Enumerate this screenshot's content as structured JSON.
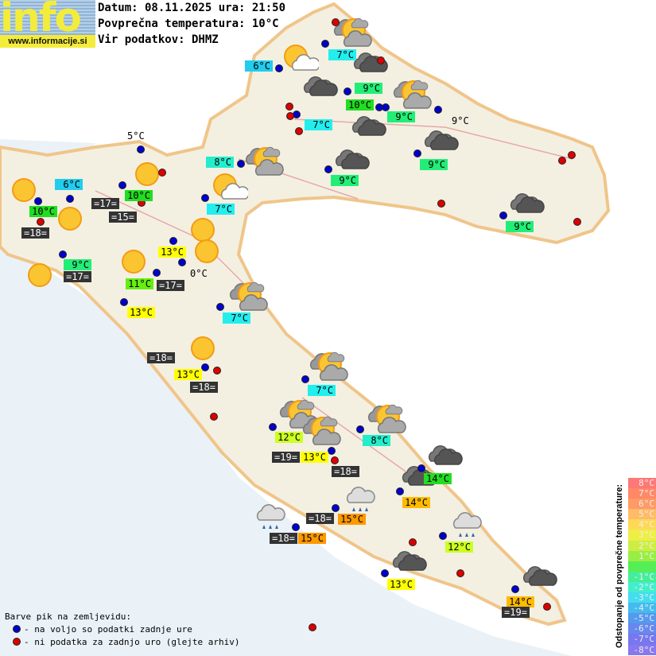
{
  "header": {
    "logo_text": "info",
    "site": "www.informacije.si",
    "date_line": "Datum: 08.11.2025 ura: 21:50",
    "avg_line": "Povprečna temperatura: 10°C",
    "source_line": "Vir podatkov: DHMZ"
  },
  "legend": {
    "title": "Barve pik na zemljevidu:",
    "blue": "- na voljo so podatki zadnje ure",
    "red": "- ni podatka za zadnjo uro (glejte arhiv)",
    "blue_color": "#0000cc",
    "red_color": "#dd0000"
  },
  "scale": {
    "title": "Odstopanje od povprečne temperature:",
    "rows": [
      {
        "label": "8°C",
        "color": "#ff7777"
      },
      {
        "label": "7°C",
        "color": "#ff8866"
      },
      {
        "label": "6°C",
        "color": "#ff9966"
      },
      {
        "label": "5°C",
        "color": "#ffbb66"
      },
      {
        "label": "4°C",
        "color": "#ffd955"
      },
      {
        "label": "3°C",
        "color": "#eeee44"
      },
      {
        "label": "2°C",
        "color": "#ccee44"
      },
      {
        "label": "1°C",
        "color": "#99ee44"
      },
      {
        "label": "",
        "color": "#55ee55"
      },
      {
        "label": "-1°C",
        "color": "#44ee99"
      },
      {
        "label": "-2°C",
        "color": "#44eecc"
      },
      {
        "label": "-3°C",
        "color": "#44ddee"
      },
      {
        "label": "-4°C",
        "color": "#44bbee"
      },
      {
        "label": "-5°C",
        "color": "#5599ee"
      },
      {
        "label": "-6°C",
        "color": "#6688ee"
      },
      {
        "label": "-7°C",
        "color": "#7777ee"
      },
      {
        "label": "-8°C",
        "color": "#8877ee"
      }
    ]
  },
  "temperatures": [
    {
      "text": "7°C",
      "color": "#22eeee"
    },
    {
      "text": "6°C",
      "color": "#22ccee"
    },
    {
      "text": "9°C",
      "color": "#22ee77"
    },
    {
      "text": "10°C",
      "color": "#22dd22"
    },
    {
      "text": "9°C",
      "color": "#22ee77"
    },
    {
      "text": "7°C",
      "color": "#22eeee"
    },
    {
      "text": "9°C",
      "color": ""
    },
    {
      "text": "8°C",
      "color": "#22eecc"
    },
    {
      "text": "9°C",
      "color": "#22ee77"
    },
    {
      "text": "9°C",
      "color": "#22ee77"
    },
    {
      "text": "5°C",
      "color": ""
    },
    {
      "text": "6°C",
      "color": "#22ccee"
    },
    {
      "text": "10°C",
      "color": "#22dd22"
    },
    {
      "text": "10°C",
      "color": "#22dd22"
    },
    {
      "text": "7°C",
      "color": "#22eeee"
    },
    {
      "text": "13°C",
      "color": "#ffff00"
    },
    {
      "text": "9°C",
      "color": "#22ee77"
    },
    {
      "text": "0°C",
      "color": ""
    },
    {
      "text": "11°C",
      "color": "#66ee11"
    },
    {
      "text": "13°C",
      "color": "#ffff00"
    },
    {
      "text": "7°C",
      "color": "#22eeee"
    },
    {
      "text": "13°C",
      "color": "#ffff00"
    },
    {
      "text": "7°C",
      "color": "#22eeee"
    },
    {
      "text": "12°C",
      "color": "#ccff22"
    },
    {
      "text": "8°C",
      "color": "#22eecc"
    },
    {
      "text": "13°C",
      "color": "#ffff00"
    },
    {
      "text": "14°C",
      "color": "#22dd22"
    },
    {
      "text": "14°C",
      "color": "#ffbb00"
    },
    {
      "text": "15°C",
      "color": "#ff9900"
    },
    {
      "text": "15°C",
      "color": "#ff9900"
    },
    {
      "text": "12°C",
      "color": "#ccff22"
    },
    {
      "text": "13°C",
      "color": "#ffff00"
    },
    {
      "text": "14°C",
      "color": "#ffbb00"
    },
    {
      "text": "9°C",
      "color": "#22ee77"
    }
  ],
  "sea_temperatures": [
    "=17=",
    "=15=",
    "=18=",
    "=17=",
    "=17=",
    "=18=",
    "=18=",
    "=19=",
    "=18=",
    "=18=",
    "=18=",
    "=19="
  ],
  "stations": [
    "blue",
    "blue",
    "red",
    "blue",
    "blue",
    "blue",
    "blue",
    "red",
    "red",
    "blue",
    "red",
    "blue",
    "blue",
    "blue",
    "red",
    "blue",
    "blue",
    "blue",
    "red",
    "red",
    "blue",
    "blue",
    "blue",
    "blue",
    "blue",
    "blue",
    "blue",
    "red",
    "red",
    "red",
    "blue",
    "red",
    "blue",
    "red",
    "blue",
    "red",
    "blue",
    "blue",
    "red",
    "blue",
    "blue",
    "blue",
    "blue",
    "red",
    "blue",
    "red",
    "blue",
    "red",
    "red"
  ],
  "weather_icons": [
    "sun",
    "sun",
    "sun",
    "sun",
    "sun",
    "sun",
    "sun",
    "sun",
    "sun-cloud-light",
    "sun-cloud-light",
    "sun-cloud",
    "sun-cloud",
    "sun-cloud",
    "sun-cloud",
    "sun-cloud",
    "sun-cloud",
    "sun-cloud",
    "sun-cloud",
    "cloud-dark",
    "cloud-dark",
    "cloud-dark",
    "cloud-dark",
    "cloud-dark",
    "cloud-dark",
    "cloud-dark",
    "cloud-dark",
    "cloud-dark",
    "cloud-dark",
    "rain",
    "rain",
    "rain"
  ]
}
